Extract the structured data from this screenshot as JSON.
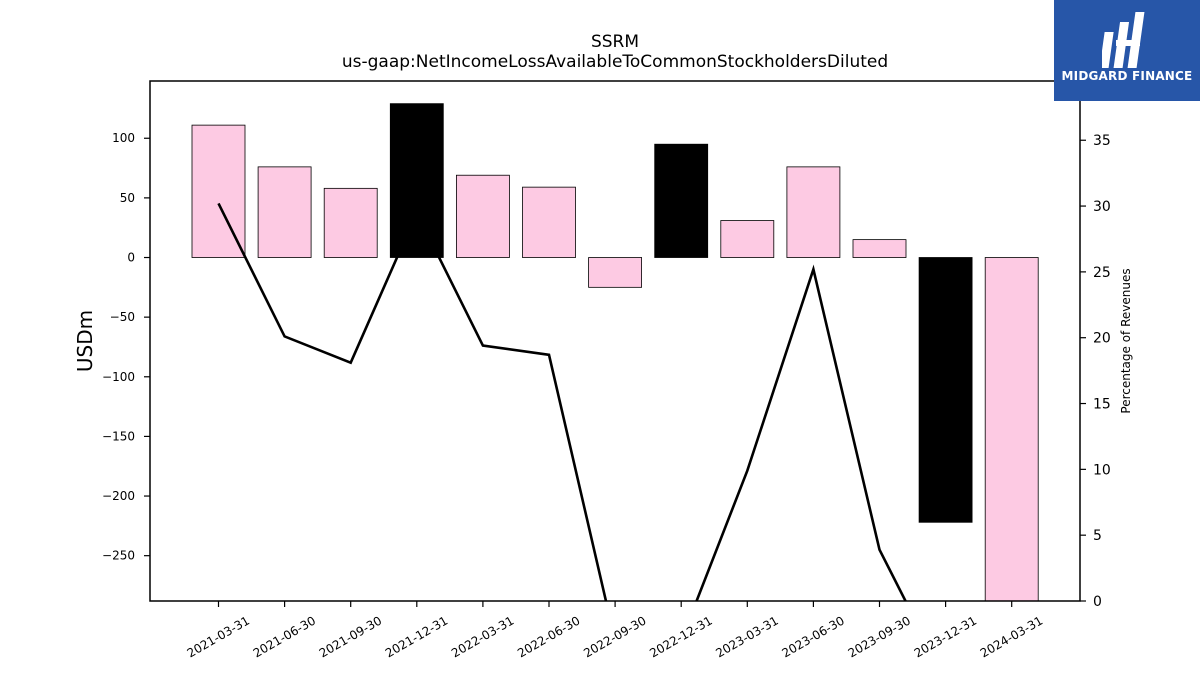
{
  "chart_data": {
    "type": "bar+line",
    "title": "SSRM",
    "subtitle": "us-gaap:NetIncomeLossAvailableToCommonStockholdersDiluted",
    "ylabel": "USDm",
    "y2label": "Percentage of Revenues",
    "ylim": [
      -288,
      148
    ],
    "y2lim": [
      0,
      39.5
    ],
    "yticks": [
      100,
      50,
      0,
      -50,
      -100,
      -150,
      -200,
      -250
    ],
    "y2ticks": [
      35,
      30,
      25,
      20,
      15,
      10,
      5,
      0
    ],
    "categories": [
      "2021-03-31",
      "2021-06-30",
      "2021-09-30",
      "2021-12-31",
      "2022-03-31",
      "2022-06-30",
      "2022-09-30",
      "2022-12-31",
      "2023-03-31",
      "2023-06-30",
      "2023-09-30",
      "2023-12-31",
      "2024-03-31"
    ],
    "series": [
      {
        "kind": "bar",
        "values": [
          111,
          76,
          58,
          129,
          69,
          59,
          -25,
          95,
          31,
          76,
          15,
          -222,
          -300
        ],
        "colors": [
          "#fdcae3",
          "#fdcae3",
          "#fdcae3",
          "#000000",
          "#fdcae3",
          "#fdcae3",
          "#fdcae3",
          "#000000",
          "#fdcae3",
          "#fdcae3",
          "#fdcae3",
          "#000000",
          "#fdcae3"
        ]
      },
      {
        "kind": "line",
        "axis": "right",
        "color": "#000000",
        "values": [
          30.2,
          20.1,
          18.1,
          29.5,
          19.4,
          18.7,
          -3.0,
          -3.0,
          9.9,
          25.2,
          3.9,
          -6.0,
          null
        ]
      }
    ]
  },
  "logo": {
    "text": "MIDGARD FINANCE"
  }
}
